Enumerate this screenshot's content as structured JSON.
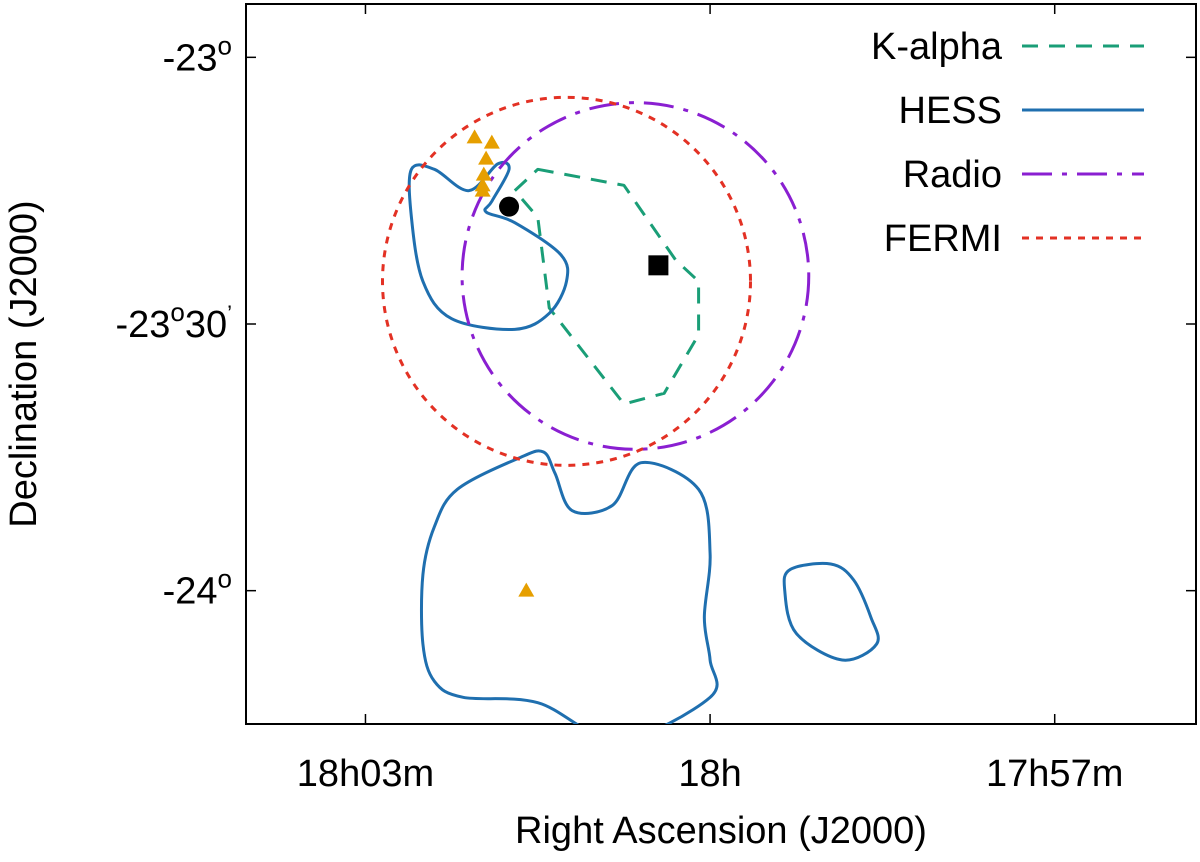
{
  "chart_data": {
    "type": "contour-map",
    "xlabel": "Right Ascension (J2000)",
    "ylabel": "Declination (J2000)",
    "x_ticks": [
      {
        "minutes": 3,
        "label": "18h03m"
      },
      {
        "minutes": 0,
        "label": "18h"
      },
      {
        "minutes": -3,
        "label": "17h57m"
      }
    ],
    "y_ticks": [
      {
        "dec": -23.0,
        "label": "-23",
        "sup": "o",
        "suffix": ""
      },
      {
        "dec": -23.5,
        "label": "-23",
        "sup": "o",
        "suffix": "30",
        "arcmin": "’"
      },
      {
        "dec": -24.0,
        "label": "-24",
        "sup": "o",
        "suffix": ""
      }
    ],
    "x_range_minutes_from_18h": [
      4.04,
      -4.23
    ],
    "y_range_deg": [
      -22.9,
      -24.25
    ],
    "legend_position": "top-right",
    "series": [
      {
        "name": "K-alpha",
        "style": "dashed",
        "color": "#1a9e77",
        "closed": true,
        "points": [
          [
            1.5,
            -23.21
          ],
          [
            0.75,
            -23.24
          ],
          [
            0.3,
            -23.38
          ],
          [
            0.1,
            -23.42
          ],
          [
            0.1,
            -23.52
          ],
          [
            0.4,
            -23.63
          ],
          [
            0.75,
            -23.65
          ],
          [
            1.4,
            -23.47
          ],
          [
            1.5,
            -23.3
          ],
          [
            1.7,
            -23.25
          ]
        ]
      },
      {
        "name": "HESS",
        "style": "solid",
        "color": "#1f6faf",
        "closed": true,
        "contours": [
          [
            [
              2.1,
              -23.25
            ],
            [
              1.85,
              -23.2
            ],
            [
              1.75,
              -23.21
            ],
            [
              1.9,
              -23.27
            ],
            [
              1.95,
              -23.29
            ],
            [
              1.7,
              -23.31
            ],
            [
              1.3,
              -23.37
            ],
            [
              1.25,
              -23.42
            ],
            [
              1.4,
              -23.48
            ],
            [
              1.7,
              -23.51
            ],
            [
              2.25,
              -23.49
            ],
            [
              2.5,
              -23.42
            ],
            [
              2.6,
              -23.3
            ],
            [
              2.6,
              -23.21
            ],
            [
              2.4,
              -23.21
            ]
          ],
          [
            [
              1.65,
              -23.75
            ],
            [
              2.2,
              -23.81
            ],
            [
              2.4,
              -23.88
            ],
            [
              2.5,
              -23.97
            ],
            [
              2.5,
              -24.1
            ],
            [
              2.4,
              -24.17
            ],
            [
              2.15,
              -24.2
            ],
            [
              1.5,
              -24.21
            ],
            [
              0.8,
              -24.28
            ],
            [
              0.0,
              -24.2
            ],
            [
              0.0,
              -24.13
            ],
            [
              0.05,
              -24.05
            ],
            [
              0.0,
              -23.93
            ],
            [
              0.1,
              -23.81
            ],
            [
              0.6,
              -23.76
            ],
            [
              0.85,
              -23.84
            ],
            [
              1.2,
              -23.85
            ],
            [
              1.35,
              -23.78
            ],
            [
              1.45,
              -23.74
            ]
          ],
          [
            [
              -1.05,
              -23.95
            ],
            [
              -1.25,
              -23.98
            ],
            [
              -1.4,
              -24.05
            ],
            [
              -1.45,
              -24.1
            ],
            [
              -1.15,
              -24.13
            ],
            [
              -0.75,
              -24.08
            ],
            [
              -0.65,
              -24.0
            ],
            [
              -0.7,
              -23.96
            ]
          ]
        ]
      },
      {
        "name": "Radio",
        "style": "dash-dot",
        "color": "#8a1fd1",
        "center": [
          0.65,
          -23.41
        ],
        "radius_deg": 0.325
      },
      {
        "name": "FERMI",
        "style": "dotted",
        "color": "#e33124",
        "center": [
          1.25,
          -23.42
        ],
        "radius_deg": 0.345
      }
    ],
    "markers": {
      "triangles": {
        "color": "#e69f00",
        "points": [
          [
            2.05,
            -23.15
          ],
          [
            1.9,
            -23.16
          ],
          [
            1.95,
            -23.19
          ],
          [
            1.97,
            -23.22
          ],
          [
            1.98,
            -23.24
          ],
          [
            1.98,
            -23.25
          ],
          [
            1.6,
            -24.0
          ]
        ]
      },
      "circle": {
        "color": "#000000",
        "points": [
          [
            1.75,
            -23.28
          ]
        ]
      },
      "square": {
        "color": "#000000",
        "points": [
          [
            0.45,
            -23.39
          ]
        ]
      }
    }
  }
}
